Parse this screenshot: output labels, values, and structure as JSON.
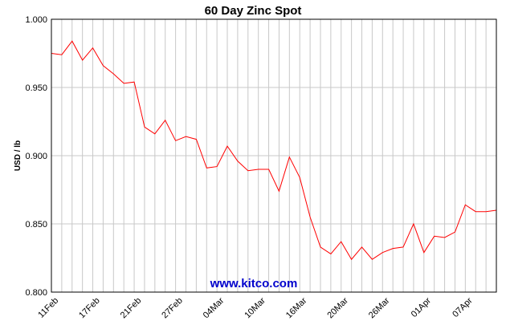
{
  "chart_data": {
    "type": "line",
    "title": "60 Day Zinc Spot",
    "xlabel": "",
    "ylabel": "USD / lb",
    "ylim": [
      0.8,
      1.0
    ],
    "yticks": [
      "0.800",
      "0.850",
      "0.900",
      "0.950",
      "1.000"
    ],
    "ytick_values": [
      0.8,
      0.85,
      0.9,
      0.95,
      1.0
    ],
    "xtick_labels": [
      "11Feb",
      "17Feb",
      "21Feb",
      "27Feb",
      "04Mar",
      "10Mar",
      "16Mar",
      "20Mar",
      "26Mar",
      "01Apr",
      "07Apr"
    ],
    "xtick_positions": [
      0,
      4,
      8,
      12,
      16,
      20,
      24,
      28,
      32,
      36,
      40
    ],
    "grid": true,
    "line_color": "#ff0000",
    "series": [
      {
        "values": [
          0.975,
          0.974,
          0.984,
          0.97,
          0.979,
          0.966,
          0.96,
          0.953,
          0.954,
          0.921,
          0.916,
          0.926,
          0.911,
          0.914,
          0.912,
          0.891,
          0.892,
          0.907,
          0.896,
          0.889,
          0.89,
          0.89,
          0.874,
          0.899,
          0.884,
          0.855,
          0.833,
          0.828,
          0.837,
          0.824,
          0.833,
          0.824,
          0.829,
          0.832,
          0.833,
          0.85,
          0.829,
          0.841,
          0.84,
          0.844,
          0.864,
          0.859,
          0.859,
          0.86
        ]
      }
    ]
  },
  "watermark": {
    "text": "www.kitco.com",
    "color": "#0000cc"
  }
}
